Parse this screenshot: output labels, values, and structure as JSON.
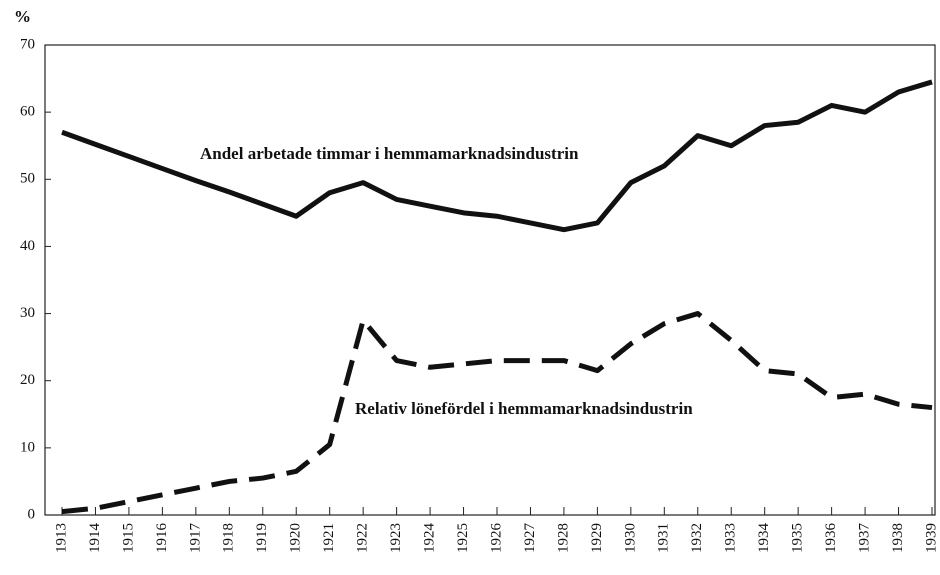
{
  "chart_data": {
    "type": "line",
    "y_label": "%",
    "categories": [
      "1913",
      "1914",
      "1915",
      "1916",
      "1917",
      "1918",
      "1919",
      "1920",
      "1921",
      "1922",
      "1923",
      "1924",
      "1925",
      "1926",
      "1927",
      "1928",
      "1929",
      "1930",
      "1931",
      "1932",
      "1933",
      "1934",
      "1935",
      "1936",
      "1937",
      "1938",
      "1939"
    ],
    "series": [
      {
        "name": "Andel arbetade timmar i hemmamarknadsindustrin",
        "color": "#111111",
        "dash": false,
        "values": [
          57,
          55.2,
          53.4,
          51.6,
          49.8,
          48.1,
          46.3,
          44.5,
          48,
          49.5,
          47,
          46,
          45,
          44.5,
          43.5,
          42.5,
          43.5,
          49.5,
          52,
          56.5,
          55,
          58,
          58.5,
          61,
          60,
          63,
          64.5
        ]
      },
      {
        "name": "Relativ lönefördel i hemmamarknadsindustrin",
        "color": "#111111",
        "dash": true,
        "values": [
          0.5,
          1,
          2,
          3,
          4,
          5,
          5.5,
          6.5,
          10.5,
          29,
          23,
          22,
          22.5,
          23,
          23,
          23,
          21.5,
          25.5,
          28.5,
          30,
          26,
          21.5,
          21,
          17.5,
          18,
          16.5,
          16
        ]
      }
    ],
    "ylim": [
      0,
      70
    ],
    "yticks": [
      0,
      10,
      20,
      30,
      40,
      50,
      60,
      70
    ],
    "grid": false
  }
}
